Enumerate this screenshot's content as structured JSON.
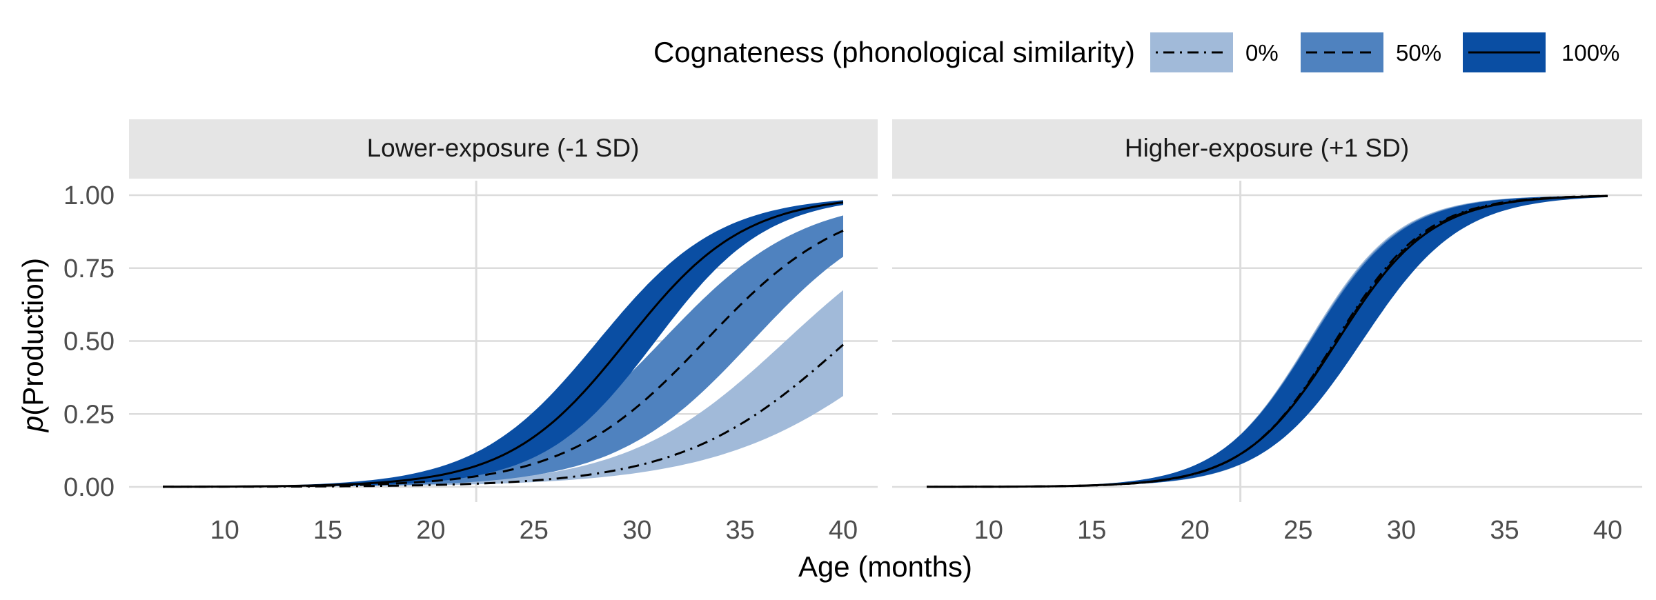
{
  "legend": {
    "title": "Cognateness (phonological similarity)",
    "items": [
      {
        "label": "0%",
        "fill": "#A1BAD9",
        "dash": "dotdash"
      },
      {
        "label": "50%",
        "fill": "#4F82BF",
        "dash": "dashed"
      },
      {
        "label": "100%",
        "fill": "#0A4EA3",
        "dash": "solid"
      }
    ]
  },
  "colors": {
    "strip_bg": "#E5E5E5",
    "grid": "#DCDCDC",
    "tick_text": "#4D4D4D",
    "line": "#000000"
  },
  "chart_data": {
    "type": "line",
    "xlabel": "Age (months)",
    "ylabel_italic": "p",
    "ylabel_rest": "(Production)",
    "xlim": [
      7,
      40
    ],
    "ylim": [
      0,
      1
    ],
    "x_ticks": [
      10,
      15,
      20,
      25,
      30,
      35,
      40
    ],
    "y_ticks": [
      "0.00",
      "0.25",
      "0.50",
      "0.75",
      "1.00"
    ],
    "y_tick_values": [
      0,
      0.25,
      0.5,
      0.75,
      1
    ],
    "reference_age": 22.2,
    "panels": [
      {
        "title": "Lower-exposure (-1 SD)",
        "series": [
          {
            "name": "0%",
            "mid": 40.2,
            "k": 0.25,
            "lo_mid": 43.6,
            "lo_k": 0.22,
            "hi_mid": 37.2,
            "hi_k": 0.26
          },
          {
            "name": "50%",
            "mid": 33.3,
            "k": 0.295,
            "lo_mid": 35.6,
            "lo_k": 0.3,
            "hi_mid": 31.2,
            "hi_k": 0.295
          },
          {
            "name": "100%",
            "mid": 29.5,
            "k": 0.35,
            "lo_mid": 30.9,
            "lo_k": 0.37,
            "hi_mid": 28.1,
            "hi_k": 0.34
          }
        ]
      },
      {
        "title": "Higher-exposure (+1 SD)",
        "series": [
          {
            "name": "0%",
            "mid": 26.8,
            "k": 0.45,
            "lo_mid": 28.0,
            "lo_k": 0.43,
            "hi_mid": 25.5,
            "hi_k": 0.46
          },
          {
            "name": "50%",
            "mid": 26.85,
            "k": 0.445,
            "lo_mid": 28.05,
            "lo_k": 0.425,
            "hi_mid": 25.55,
            "hi_k": 0.455
          },
          {
            "name": "100%",
            "mid": 26.9,
            "k": 0.44,
            "lo_mid": 28.1,
            "lo_k": 0.42,
            "hi_mid": 25.6,
            "hi_k": 0.45
          }
        ]
      }
    ]
  }
}
